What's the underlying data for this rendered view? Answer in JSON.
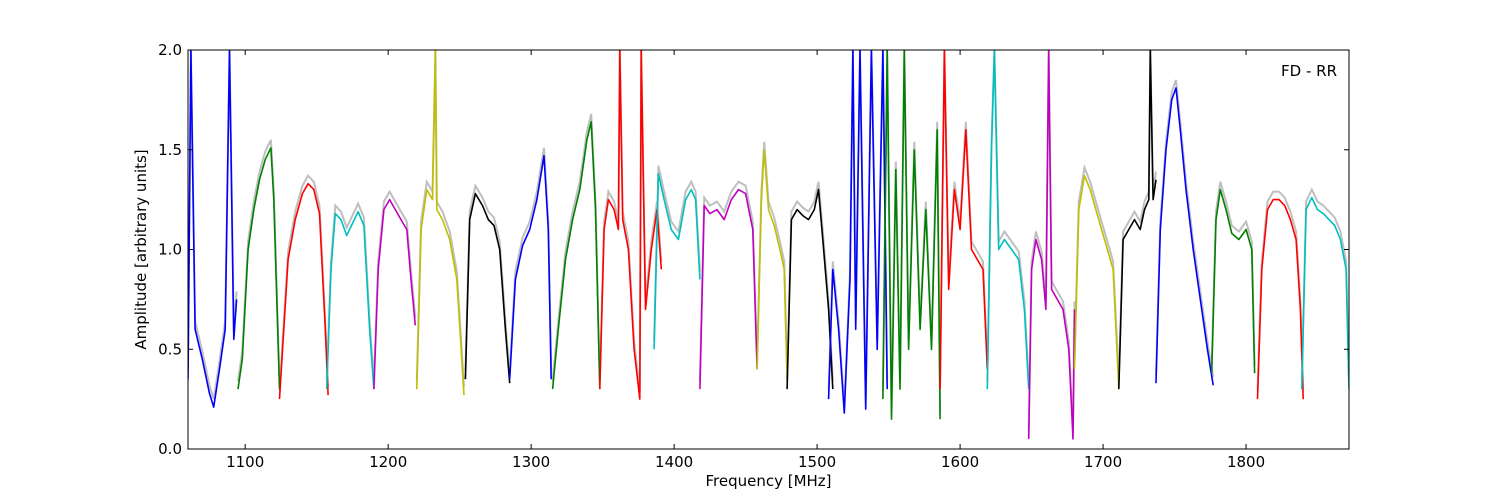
{
  "chart_data": {
    "type": "line",
    "title": "",
    "xlabel": "Frequency [MHz]",
    "ylabel": "Amplitude [arbitrary units]",
    "annotation": "FD - RR",
    "xlim": [
      1060,
      1872
    ],
    "ylim": [
      0.0,
      2.0
    ],
    "xticks": [
      1100,
      1200,
      1300,
      1400,
      1500,
      1600,
      1700,
      1800
    ],
    "yticks": [
      0.0,
      0.5,
      1.0,
      1.5,
      2.0
    ],
    "xtick_labels": [
      "1100",
      "1200",
      "1300",
      "1400",
      "1500",
      "1600",
      "1700",
      "1800"
    ],
    "ytick_labels": [
      "0.0",
      "0.5",
      "1.0",
      "1.5",
      "2.0"
    ],
    "grid": false,
    "legend": "none",
    "background_color": "#bfbfbf",
    "series": [
      {
        "color": "#0000ff",
        "x": [
          1060,
          1062,
          1065,
          1070,
          1075,
          1078,
          1082,
          1086,
          1089,
          1092,
          1094
        ],
        "y": [
          0.35,
          2.0,
          0.6,
          0.45,
          0.28,
          0.21,
          0.4,
          0.6,
          2.0,
          0.55,
          0.75
        ]
      },
      {
        "color": "#008000",
        "x": [
          1095,
          1098,
          1102,
          1106,
          1110,
          1114,
          1118,
          1120,
          1124
        ],
        "y": [
          0.3,
          0.45,
          1.0,
          1.2,
          1.35,
          1.45,
          1.51,
          1.25,
          0.3
        ]
      },
      {
        "color": "#ff0000",
        "x": [
          1124,
          1127,
          1130,
          1135,
          1140,
          1144,
          1148,
          1152,
          1156,
          1158
        ],
        "y": [
          0.25,
          0.6,
          0.95,
          1.15,
          1.28,
          1.33,
          1.3,
          1.18,
          0.6,
          0.27
        ]
      },
      {
        "color": "#00bfbf",
        "x": [
          1157,
          1160,
          1163,
          1167,
          1171,
          1175,
          1179,
          1183,
          1187,
          1190
        ],
        "y": [
          0.3,
          0.9,
          1.18,
          1.15,
          1.07,
          1.13,
          1.19,
          1.12,
          0.6,
          0.3
        ]
      },
      {
        "color": "#bf00bf",
        "x": [
          1190,
          1193,
          1197,
          1201,
          1205,
          1209,
          1213,
          1216,
          1219
        ],
        "y": [
          0.3,
          0.9,
          1.2,
          1.25,
          1.2,
          1.15,
          1.1,
          0.85,
          0.62
        ]
      },
      {
        "color": "#bfbf00",
        "x": [
          1220,
          1223,
          1227,
          1231,
          1233,
          1234,
          1238,
          1243,
          1248,
          1253
        ],
        "y": [
          0.3,
          1.1,
          1.3,
          1.25,
          2.0,
          1.2,
          1.15,
          1.05,
          0.85,
          0.27
        ]
      },
      {
        "color": "#000000",
        "x": [
          1254,
          1257,
          1261,
          1266,
          1270,
          1274,
          1278,
          1282,
          1285
        ],
        "y": [
          0.35,
          1.15,
          1.28,
          1.22,
          1.15,
          1.12,
          1.0,
          0.6,
          0.33
        ]
      },
      {
        "color": "#0000ff",
        "x": [
          1285,
          1289,
          1294,
          1299,
          1304,
          1309,
          1312,
          1314
        ],
        "y": [
          0.35,
          0.85,
          1.02,
          1.1,
          1.25,
          1.47,
          1.1,
          0.35
        ]
      },
      {
        "color": "#008000",
        "x": [
          1315,
          1319,
          1324,
          1329,
          1334,
          1339,
          1342,
          1345,
          1348
        ],
        "y": [
          0.3,
          0.6,
          0.95,
          1.15,
          1.3,
          1.55,
          1.64,
          1.2,
          0.3
        ]
      },
      {
        "color": "#ff0000",
        "x": [
          1348,
          1351,
          1354,
          1358,
          1361,
          1362,
          1364,
          1368,
          1372,
          1376,
          1377,
          1380,
          1384,
          1388,
          1391
        ],
        "y": [
          0.3,
          1.1,
          1.25,
          1.2,
          1.1,
          2.0,
          1.15,
          1.0,
          0.5,
          0.25,
          2.0,
          0.7,
          1.0,
          1.2,
          0.9
        ]
      },
      {
        "color": "#00bfbf",
        "x": [
          1386,
          1389,
          1393,
          1398,
          1403,
          1408,
          1412,
          1415,
          1418
        ],
        "y": [
          0.5,
          1.38,
          1.25,
          1.1,
          1.05,
          1.25,
          1.3,
          1.25,
          0.85
        ]
      },
      {
        "color": "#bf00bf",
        "x": [
          1418,
          1421,
          1425,
          1430,
          1435,
          1440,
          1445,
          1450,
          1455,
          1458
        ],
        "y": [
          0.3,
          1.22,
          1.18,
          1.2,
          1.15,
          1.25,
          1.3,
          1.28,
          1.1,
          0.4
        ]
      },
      {
        "color": "#bfbf00",
        "x": [
          1458,
          1461,
          1463,
          1466,
          1470,
          1474,
          1477,
          1479
        ],
        "y": [
          0.4,
          1.25,
          1.5,
          1.2,
          1.12,
          1.0,
          0.9,
          0.35
        ]
      },
      {
        "color": "#000000",
        "x": [
          1479,
          1482,
          1486,
          1490,
          1494,
          1498,
          1501,
          1504,
          1508,
          1511
        ],
        "y": [
          0.3,
          1.15,
          1.2,
          1.17,
          1.15,
          1.2,
          1.3,
          1.05,
          0.7,
          0.3
        ]
      },
      {
        "color": "#0000ff",
        "x": [
          1508,
          1511,
          1515,
          1519,
          1523,
          1525,
          1527,
          1530,
          1534,
          1538,
          1542,
          1546,
          1549
        ],
        "y": [
          0.25,
          0.9,
          0.6,
          0.18,
          0.85,
          2.0,
          0.6,
          2.0,
          0.2,
          2.0,
          0.5,
          2.0,
          0.3
        ]
      },
      {
        "color": "#008000",
        "x": [
          1546,
          1549,
          1552,
          1555,
          1558,
          1561,
          1564,
          1568,
          1572,
          1576,
          1580,
          1584,
          1586
        ],
        "y": [
          0.25,
          2.0,
          0.15,
          1.4,
          0.3,
          2.0,
          0.5,
          1.5,
          0.6,
          1.2,
          0.5,
          1.6,
          0.15
        ]
      },
      {
        "color": "#ff0000",
        "x": [
          1586,
          1589,
          1592,
          1596,
          1600,
          1604,
          1608,
          1612,
          1616,
          1619
        ],
        "y": [
          0.3,
          2.0,
          0.8,
          1.3,
          1.1,
          1.6,
          1.0,
          0.95,
          0.9,
          0.4
        ]
      },
      {
        "color": "#00bfbf",
        "x": [
          1619,
          1622,
          1624,
          1627,
          1631,
          1636,
          1641,
          1645,
          1648
        ],
        "y": [
          0.3,
          1.5,
          2.0,
          1.0,
          1.05,
          1.0,
          0.95,
          0.7,
          0.3
        ]
      },
      {
        "color": "#bf00bf",
        "x": [
          1648,
          1650,
          1653,
          1657,
          1660,
          1662,
          1664,
          1668,
          1672,
          1676,
          1679,
          1680
        ],
        "y": [
          0.05,
          0.9,
          1.05,
          0.95,
          0.7,
          2.0,
          0.8,
          0.75,
          0.7,
          0.5,
          0.05,
          0.7
        ]
      },
      {
        "color": "#bfbf00",
        "x": [
          1680,
          1683,
          1687,
          1691,
          1695,
          1699,
          1703,
          1707,
          1711
        ],
        "y": [
          0.4,
          1.2,
          1.37,
          1.3,
          1.2,
          1.1,
          1.0,
          0.9,
          0.3
        ]
      },
      {
        "color": "#000000",
        "x": [
          1711,
          1714,
          1718,
          1722,
          1726,
          1729,
          1732,
          1733,
          1735,
          1737
        ],
        "y": [
          0.3,
          1.05,
          1.1,
          1.15,
          1.1,
          1.2,
          1.25,
          2.0,
          1.25,
          1.35
        ]
      },
      {
        "color": "#0000ff",
        "x": [
          1737,
          1740,
          1744,
          1748,
          1751,
          1754,
          1758,
          1763,
          1768,
          1773,
          1777
        ],
        "y": [
          0.33,
          1.1,
          1.5,
          1.75,
          1.81,
          1.6,
          1.3,
          1.0,
          0.75,
          0.5,
          0.32
        ]
      },
      {
        "color": "#008000",
        "x": [
          1776,
          1779,
          1782,
          1786,
          1790,
          1795,
          1800,
          1804,
          1806
        ],
        "y": [
          0.38,
          1.15,
          1.3,
          1.2,
          1.08,
          1.05,
          1.1,
          1.0,
          0.38
        ]
      },
      {
        "color": "#ff0000",
        "x": [
          1808,
          1811,
          1815,
          1819,
          1823,
          1827,
          1831,
          1835,
          1838,
          1840
        ],
        "y": [
          0.25,
          0.9,
          1.2,
          1.25,
          1.25,
          1.22,
          1.15,
          1.05,
          0.7,
          0.25
        ]
      },
      {
        "color": "#00bfbf",
        "x": [
          1839,
          1842,
          1846,
          1850,
          1854,
          1858,
          1862,
          1866,
          1870,
          1872
        ],
        "y": [
          0.3,
          1.2,
          1.26,
          1.2,
          1.18,
          1.15,
          1.12,
          1.05,
          0.9,
          0.3
        ]
      }
    ]
  }
}
